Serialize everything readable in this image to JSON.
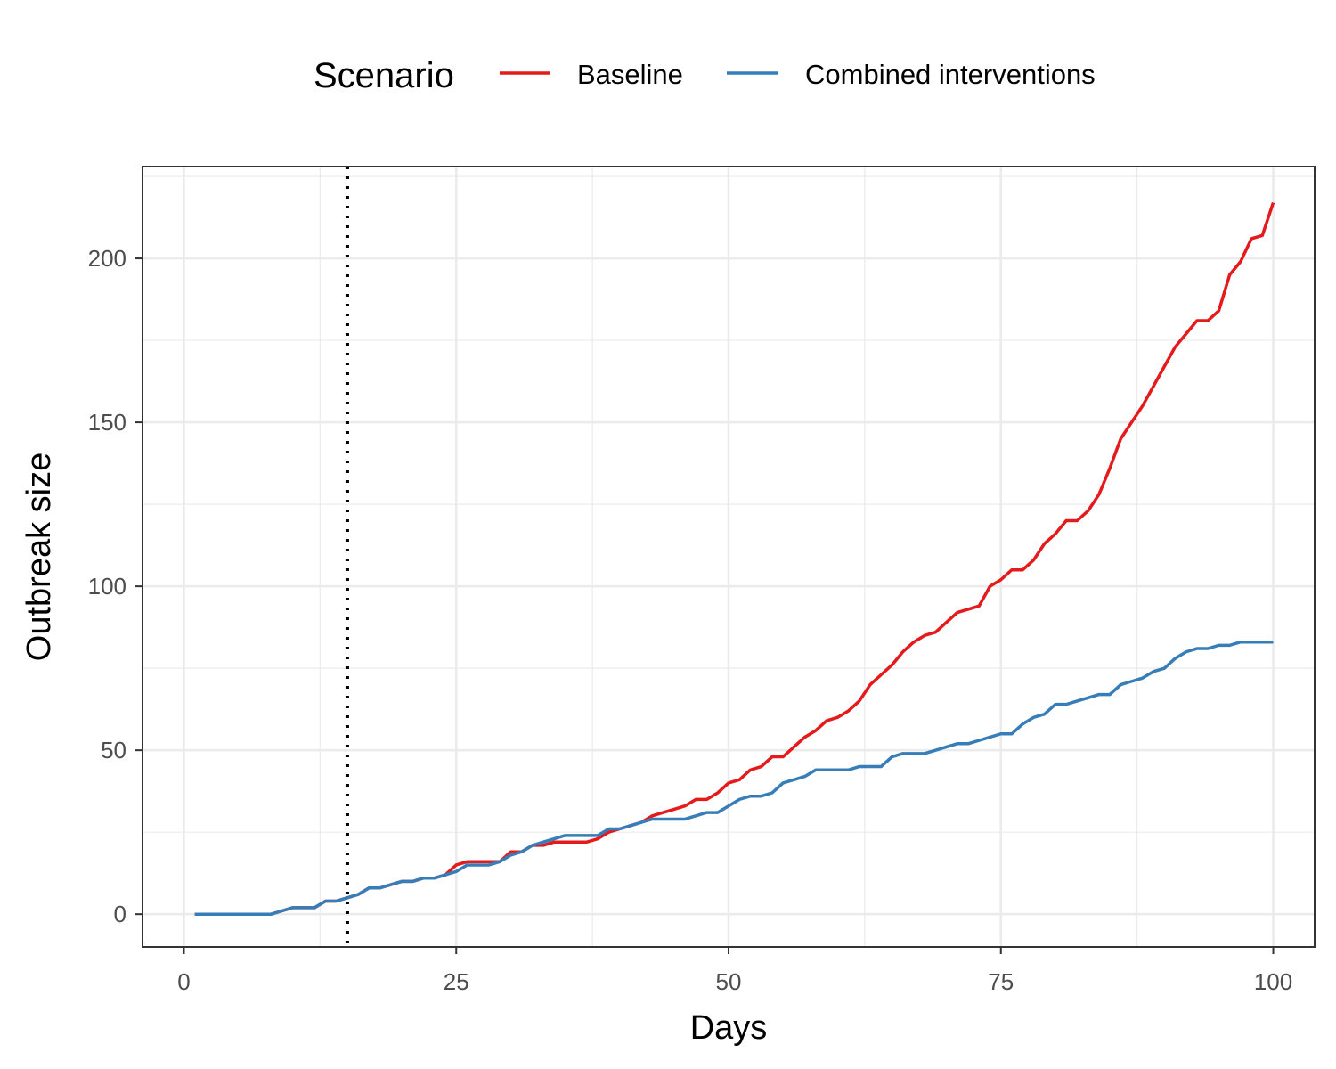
{
  "chart_data": {
    "type": "line",
    "xlabel": "Days",
    "ylabel": "Outbreak size",
    "xlim": [
      -3.8,
      103.8
    ],
    "ylim": [
      -10,
      228
    ],
    "x_ticks": [
      0,
      25,
      50,
      75,
      100
    ],
    "y_ticks": [
      0,
      50,
      100,
      150,
      200
    ],
    "grid": true,
    "legend": {
      "title": "Scenario",
      "position": "top"
    },
    "reference_line": {
      "x": 15,
      "style": "dotted",
      "color": "#000000"
    },
    "x": [
      1,
      2,
      3,
      4,
      5,
      6,
      7,
      8,
      9,
      10,
      11,
      12,
      13,
      14,
      15,
      16,
      17,
      18,
      19,
      20,
      21,
      22,
      23,
      24,
      25,
      26,
      27,
      28,
      29,
      30,
      31,
      32,
      33,
      34,
      35,
      36,
      37,
      38,
      39,
      40,
      41,
      42,
      43,
      44,
      45,
      46,
      47,
      48,
      49,
      50,
      51,
      52,
      53,
      54,
      55,
      56,
      57,
      58,
      59,
      60,
      61,
      62,
      63,
      64,
      65,
      66,
      67,
      68,
      69,
      70,
      71,
      72,
      73,
      74,
      75,
      76,
      77,
      78,
      79,
      80,
      81,
      82,
      83,
      84,
      85,
      86,
      87,
      88,
      89,
      90,
      91,
      92,
      93,
      94,
      95,
      96,
      97,
      98,
      99,
      100
    ],
    "series": [
      {
        "name": "Baseline",
        "color": "#e41a1c",
        "values": [
          0,
          0,
          0,
          0,
          0,
          0,
          0,
          0,
          1,
          2,
          2,
          2,
          4,
          4,
          5,
          6,
          8,
          8,
          9,
          10,
          10,
          11,
          11,
          12,
          15,
          16,
          16,
          16,
          16,
          19,
          19,
          21,
          21,
          22,
          22,
          22,
          22,
          23,
          25,
          26,
          27,
          28,
          30,
          31,
          32,
          33,
          35,
          35,
          37,
          40,
          41,
          44,
          45,
          48,
          48,
          51,
          54,
          56,
          59,
          60,
          62,
          65,
          70,
          73,
          76,
          80,
          83,
          85,
          86,
          89,
          92,
          93,
          94,
          100,
          102,
          105,
          105,
          108,
          113,
          116,
          120,
          120,
          123,
          128,
          136,
          145,
          150,
          155,
          161,
          167,
          173,
          177,
          181,
          181,
          184,
          195,
          199,
          206,
          207,
          217
        ]
      },
      {
        "name": "Combined interventions",
        "color": "#377eb8",
        "values": [
          0,
          0,
          0,
          0,
          0,
          0,
          0,
          0,
          1,
          2,
          2,
          2,
          4,
          4,
          5,
          6,
          8,
          8,
          9,
          10,
          10,
          11,
          11,
          12,
          13,
          15,
          15,
          15,
          16,
          18,
          19,
          21,
          22,
          23,
          24,
          24,
          24,
          24,
          26,
          26,
          27,
          28,
          29,
          29,
          29,
          29,
          30,
          31,
          31,
          33,
          35,
          36,
          36,
          37,
          40,
          41,
          42,
          44,
          44,
          44,
          44,
          45,
          45,
          45,
          48,
          49,
          49,
          49,
          50,
          51,
          52,
          52,
          53,
          54,
          55,
          55,
          58,
          60,
          61,
          64,
          64,
          65,
          66,
          67,
          67,
          70,
          71,
          72,
          74,
          75,
          78,
          80,
          81,
          81,
          82,
          82,
          83,
          83,
          83,
          83
        ]
      }
    ]
  }
}
